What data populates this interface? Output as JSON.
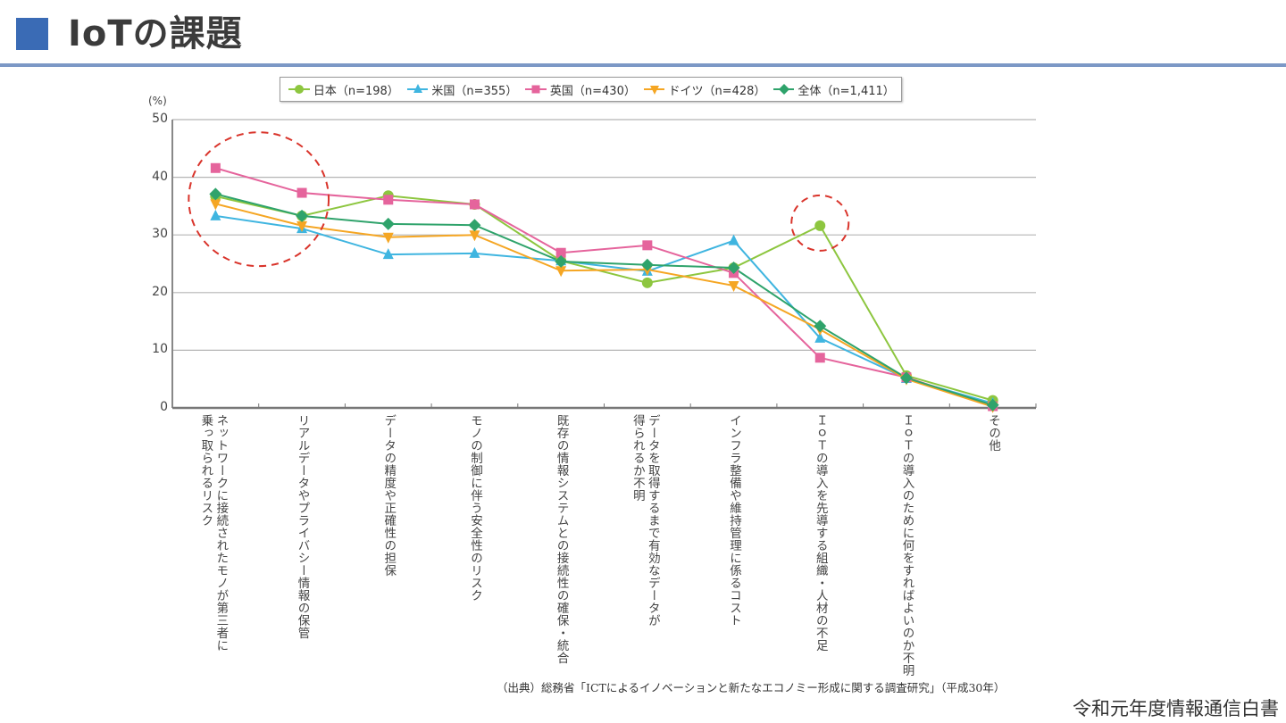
{
  "header": {
    "title": "IoTの課題"
  },
  "footer": {
    "publication": "令和元年度情報通信白書"
  },
  "source_note": "（出典）総務省「ICTによるイノベーションと新たなエコノミー形成に関する調査研究」（平成30年）",
  "colors": {
    "title_square": "#3a6bb5",
    "header_rule": "#7c98c6",
    "highlight_circle": "#d9342b"
  },
  "chart_data": {
    "type": "line",
    "title": "",
    "ylabel": "(%)",
    "xlabel": "",
    "ylim": [
      0,
      50
    ],
    "yticks": [
      0,
      10,
      20,
      30,
      40,
      50
    ],
    "ytick_labels": [
      "0",
      "10",
      "20",
      "30",
      "40",
      "50"
    ],
    "grid": "horizontal",
    "legend_position": "top",
    "categories": [
      "ネットワークに接続されたモノが第三者に\n乗っ取られるリスク",
      "リアルデータやプライバシー情報の保管",
      "データの精度や正確性の担保",
      "モノの制御に伴う安全性のリスク",
      "既存の情報システムとの接続性の確保・統合",
      "データを取得するまで有効なデータが\n得られるか不明",
      "インフラ整備や維持管理に係るコスト",
      "ＩｏＴの導入を先導する組織・人材の不足",
      "ＩｏＴの導入のために何をすればよいのか不明",
      "その他"
    ],
    "series": [
      {
        "name": "日本（n=198）",
        "marker": "circle",
        "color": "#8dc63f",
        "values": [
          36.7,
          33.3,
          36.8,
          35.3,
          25.5,
          21.7,
          24.3,
          31.6,
          5.6,
          1.3
        ]
      },
      {
        "name": "米国（n=355）",
        "marker": "triangle-up",
        "color": "#3fb5e0",
        "values": [
          33.3,
          31.1,
          26.6,
          26.8,
          25.5,
          23.7,
          29.0,
          12.1,
          5.1,
          0.8
        ]
      },
      {
        "name": "英国（n=430）",
        "marker": "square",
        "color": "#e5649c",
        "values": [
          41.6,
          37.3,
          36.1,
          35.3,
          26.9,
          28.2,
          23.4,
          8.7,
          5.3,
          0.3
        ]
      },
      {
        "name": "ドイツ（n=428）",
        "marker": "triangle-down",
        "color": "#f5a623",
        "values": [
          35.4,
          31.6,
          29.6,
          30.0,
          23.8,
          24.0,
          21.2,
          13.6,
          5.0,
          0.2
        ]
      },
      {
        "name": "全体（n=1,411）",
        "marker": "diamond",
        "color": "#2fa36b",
        "values": [
          37.1,
          33.3,
          31.9,
          31.7,
          25.4,
          24.8,
          24.3,
          14.2,
          5.2,
          0.5
        ]
      }
    ],
    "annotations": [
      {
        "type": "dashed-circle",
        "around_categories": [
          0,
          1
        ],
        "description": "highlight of top two risks"
      },
      {
        "type": "dashed-circle",
        "around_categories": [
          7
        ],
        "series": "日本（n=198）",
        "description": "highlight of Japan's lack of IoT leadership personnel"
      }
    ]
  }
}
